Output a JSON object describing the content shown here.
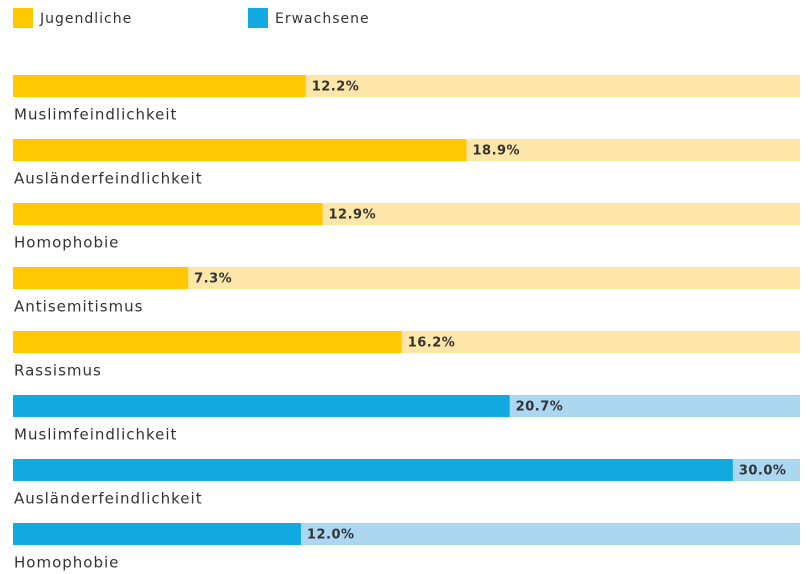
{
  "chart_data": {
    "type": "bar",
    "orientation": "horizontal",
    "xlim": [
      0,
      32.8
    ],
    "series": [
      {
        "name": "Jugendliche",
        "color": "#ffc800",
        "track_color": "#fde6a7",
        "categories": [
          "Muslimfeindlichkeit",
          "Ausländerfeindlichkeit",
          "Homophobie",
          "Antisemitismus",
          "Rassismus"
        ],
        "values": [
          12.2,
          18.9,
          12.9,
          7.3,
          16.2
        ],
        "value_labels": [
          "12.2%",
          "18.9%",
          "12.9%",
          "7.3%",
          "16.2%"
        ]
      },
      {
        "name": "Erwachsene",
        "color": "#12a8e0",
        "track_color": "#acd7f1",
        "categories": [
          "Muslimfeindlichkeit",
          "Ausländerfeindlichkeit",
          "Homophobie"
        ],
        "values": [
          20.7,
          30.0,
          12.0
        ],
        "value_labels": [
          "20.7%",
          "30.0%",
          "12.0%"
        ]
      }
    ]
  }
}
